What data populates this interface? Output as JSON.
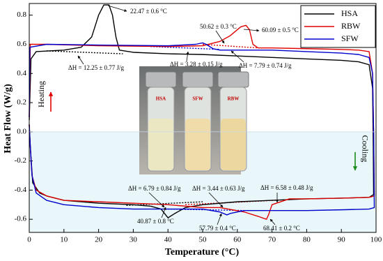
{
  "chart_data": {
    "type": "line",
    "xlabel": "Temperature (°C)",
    "ylabel": "Heat Flow (W/g)",
    "xlim": [
      0,
      100
    ],
    "xticks": [
      0,
      10,
      20,
      30,
      40,
      50,
      60,
      70,
      80,
      90,
      100
    ],
    "ylim": [
      -0.69,
      0.88
    ],
    "yticks": [
      -0.6,
      -0.4,
      -0.2,
      {
        "value": 0,
        "label": "0.0"
      },
      0.2,
      0.4,
      0.6,
      0.8
    ],
    "legend": "upper right",
    "series": [
      {
        "name": "HSA",
        "color": "#000000",
        "x": [
          0,
          0.5,
          2,
          10,
          15,
          18,
          20,
          21.5,
          23,
          24,
          25,
          26,
          30,
          40,
          50,
          60,
          70,
          80,
          90,
          95,
          98,
          99,
          99.2,
          99.3,
          98,
          90,
          80,
          70,
          60,
          50,
          45,
          42,
          40,
          38,
          35,
          30,
          20,
          10,
          5,
          3,
          1,
          0.3,
          0
        ],
        "values": [
          0.08,
          0.5,
          0.55,
          0.56,
          0.58,
          0.65,
          0.8,
          0.87,
          0.87,
          0.8,
          0.65,
          0.56,
          0.545,
          0.535,
          0.53,
          0.52,
          0.51,
          0.5,
          0.49,
          0.48,
          0.46,
          0.3,
          -0.1,
          -0.43,
          -0.45,
          -0.455,
          -0.46,
          -0.47,
          -0.48,
          -0.5,
          -0.52,
          -0.56,
          -0.59,
          -0.53,
          -0.51,
          -0.5,
          -0.49,
          -0.47,
          -0.44,
          -0.42,
          -0.35,
          -0.1,
          0.05
        ]
      },
      {
        "name": "RBW",
        "color": "#e00000",
        "x": [
          0,
          0.3,
          5,
          20,
          40,
          50,
          55,
          58,
          61,
          62.5,
          63.5,
          64.5,
          66,
          70,
          80,
          90,
          95,
          98,
          99,
          99.3,
          99.5,
          98,
          90,
          80,
          75,
          70,
          69,
          68.4,
          66,
          62,
          55,
          50,
          40,
          30,
          20,
          10,
          5,
          2,
          0.8,
          0.3,
          0
        ],
        "values": [
          0.1,
          0.6,
          0.6,
          0.59,
          0.585,
          0.59,
          0.62,
          0.66,
          0.72,
          0.73,
          0.7,
          0.6,
          0.575,
          0.575,
          0.57,
          0.565,
          0.56,
          0.55,
          0.4,
          0,
          -0.44,
          -0.45,
          -0.455,
          -0.46,
          -0.46,
          -0.5,
          -0.57,
          -0.6,
          -0.58,
          -0.55,
          -0.52,
          -0.52,
          -0.5,
          -0.49,
          -0.48,
          -0.47,
          -0.44,
          -0.4,
          -0.3,
          -0.1,
          0.05
        ]
      },
      {
        "name": "SFW",
        "color": "#0000cc",
        "x": [
          0,
          0.2,
          5,
          20,
          40,
          48,
          50,
          51,
          53,
          55,
          70,
          80,
          90,
          95,
          98,
          99,
          99.3,
          99.5,
          98,
          90,
          80,
          70,
          62,
          58,
          57,
          55,
          50,
          40,
          30,
          20,
          10,
          5,
          2,
          0.8,
          0.3,
          0
        ],
        "values": [
          0.1,
          0.58,
          0.6,
          0.595,
          0.59,
          0.6,
          0.61,
          0.6,
          0.57,
          0.56,
          0.56,
          0.55,
          0.54,
          0.53,
          0.51,
          0.4,
          0,
          -0.52,
          -0.53,
          -0.535,
          -0.54,
          -0.54,
          -0.54,
          -0.56,
          -0.57,
          -0.55,
          -0.53,
          -0.53,
          -0.53,
          -0.52,
          -0.5,
          -0.47,
          -0.42,
          -0.3,
          -0.1,
          0.05
        ]
      }
    ],
    "baselines": [
      {
        "color": "#000000",
        "x": [
          5,
          27
        ],
        "values": [
          0.555,
          0.535
        ]
      },
      {
        "color": "#e00000",
        "x": [
          50,
          66
        ],
        "values": [
          0.6,
          0.575
        ]
      },
      {
        "color": "#0000cc",
        "x": [
          35,
          55
        ],
        "values": [
          0.585,
          0.565
        ]
      },
      {
        "color": "#000000",
        "x": [
          28,
          50
        ],
        "values": [
          -0.505,
          -0.48
        ]
      },
      {
        "color": "#e00000",
        "x": [
          45,
          75
        ],
        "values": [
          -0.5,
          -0.465
        ]
      },
      {
        "color": "#0000cc",
        "x": [
          40,
          62
        ],
        "values": [
          -0.53,
          -0.54
        ]
      }
    ],
    "annotations": [
      "22.47 ± 0.6 °C",
      "50.62 ± 0.3 °C",
      "60.09 ± 0.5 °C",
      "ΔH = 12.25 ± 0.77 J/g",
      "ΔH = 3.28 ± 0.15 J/g",
      "ΔH = 7.79 ± 0.74 J/g",
      "ΔH = 6.79 ± 0.84 J/g",
      "ΔH = 3.44 ± 0.63 J/g",
      "ΔH = 6.58 ± 0.48 J/g",
      "40.87 ± 0.8 °C",
      "57.79 ± 0.4 °C",
      "68.41 ± 0.2 °C",
      "Heating",
      "Cooling"
    ],
    "photo_labels": [
      "HSA",
      "SFW",
      "RBW"
    ]
  }
}
